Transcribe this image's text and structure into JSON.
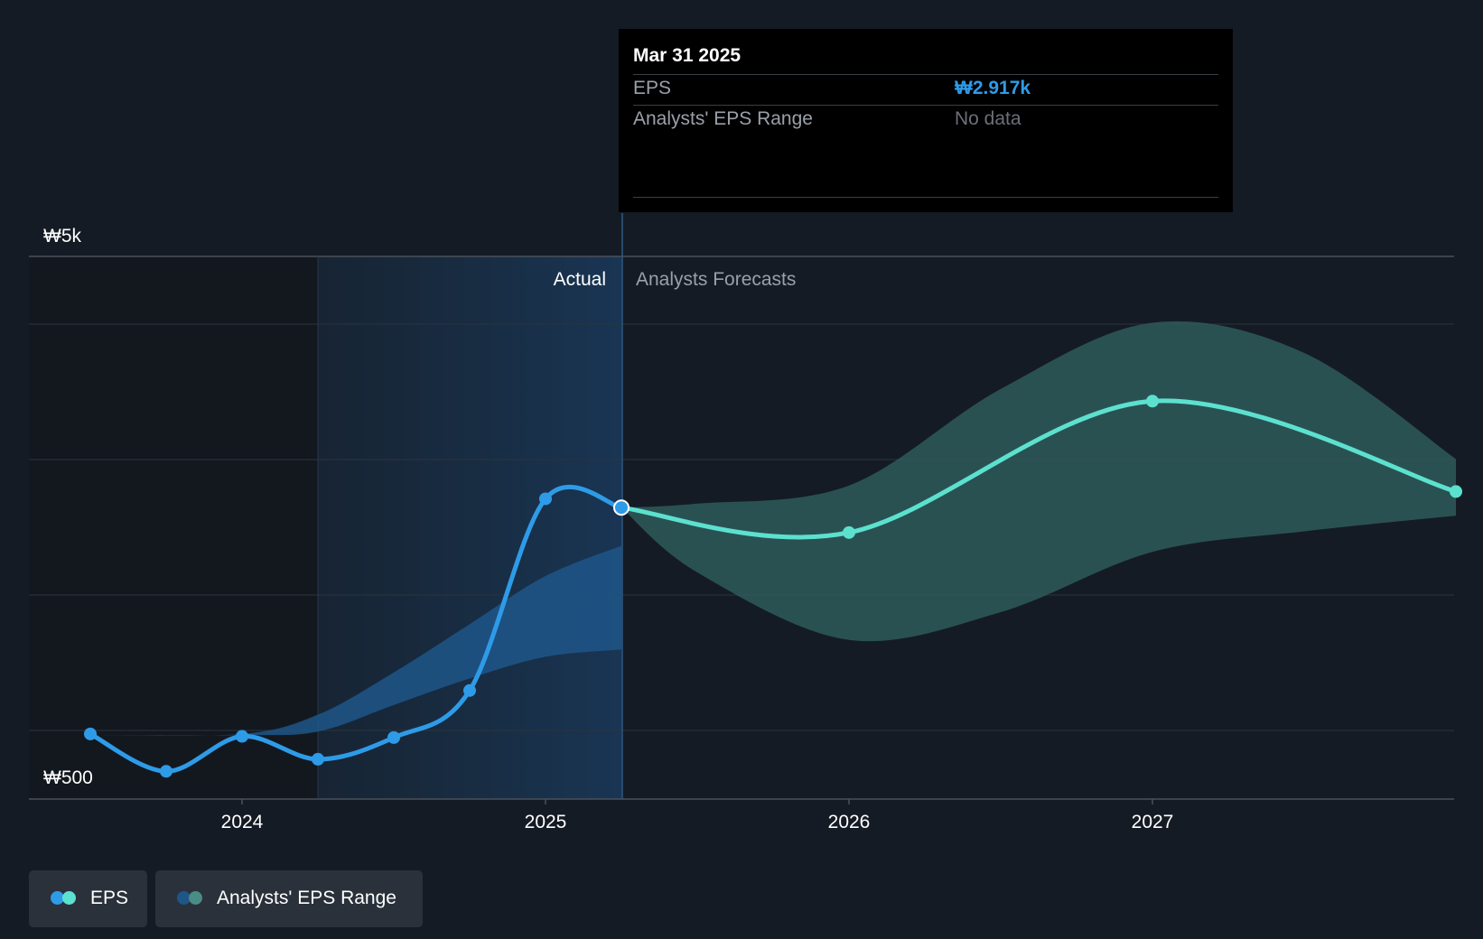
{
  "chart_data": {
    "type": "line",
    "y_axis": {
      "min_label": "₩500",
      "max_label": "₩5k",
      "ylim": [
        500,
        5000
      ]
    },
    "x_ticks": [
      "2024",
      "2025",
      "2026",
      "2027"
    ],
    "regions": {
      "actual": "Actual",
      "forecast": "Analysts Forecasts"
    },
    "series": [
      {
        "name": "EPS",
        "kind": "actual",
        "points": [
          {
            "x": 2023.5,
            "y": 1040
          },
          {
            "x": 2023.75,
            "y": 730
          },
          {
            "x": 2024.0,
            "y": 1020
          },
          {
            "x": 2024.25,
            "y": 830
          },
          {
            "x": 2024.5,
            "y": 1010
          },
          {
            "x": 2024.75,
            "y": 1400
          },
          {
            "x": 2025.0,
            "y": 2990
          },
          {
            "x": 2025.25,
            "y": 2917
          }
        ]
      },
      {
        "name": "EPS",
        "kind": "forecast",
        "points": [
          {
            "x": 2025.25,
            "y": 2917
          },
          {
            "x": 2026.0,
            "y": 2710
          },
          {
            "x": 2027.0,
            "y": 3800
          },
          {
            "x": 2028.0,
            "y": 3050
          }
        ]
      }
    ],
    "range_actual": {
      "x": [
        2023.5,
        2024.0,
        2024.25,
        2024.5,
        2024.75,
        2025.0,
        2025.25
      ],
      "upper": [
        1030,
        1040,
        1200,
        1550,
        1950,
        2350,
        2600
      ],
      "lower": [
        1030,
        1030,
        1060,
        1280,
        1500,
        1680,
        1740
      ]
    },
    "range_forecast": {
      "x": [
        2025.25,
        2025.5,
        2026.0,
        2026.5,
        2027.0,
        2027.5,
        2028.0
      ],
      "upper": [
        2917,
        2950,
        3100,
        3900,
        4450,
        4200,
        3320
      ],
      "lower": [
        2917,
        2380,
        1820,
        2050,
        2550,
        2720,
        2850
      ]
    },
    "legend_position": "bottom-left",
    "tooltip": {
      "date": "Mar 31 2025",
      "eps_label": "EPS",
      "eps_value": "₩2.917k",
      "range_label": "Analysts' EPS Range",
      "range_value": "No data"
    },
    "colors": {
      "background": "#151b24",
      "actual": "#2e9be8",
      "forecast": "#5ce1cf",
      "range_actual": "#1f5688",
      "range_forecast": "#2e5a5a",
      "grid": "#2c333d",
      "tick_text": "#ffffff"
    }
  },
  "legend": {
    "eps_label": "EPS",
    "range_label": "Analysts' EPS Range"
  }
}
